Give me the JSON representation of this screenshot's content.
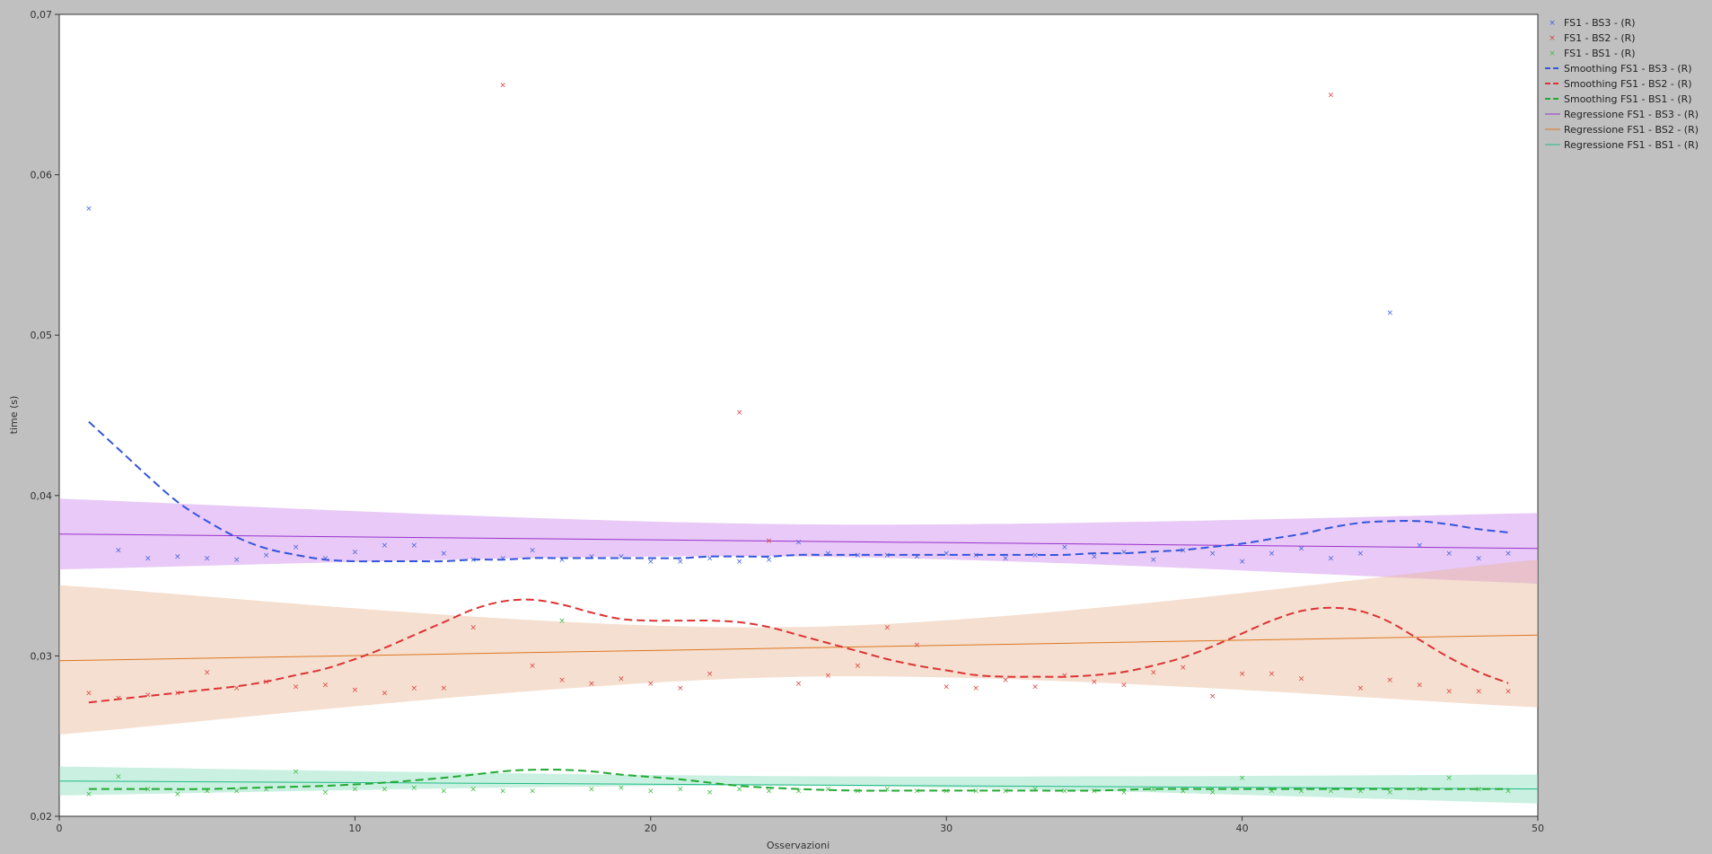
{
  "chart_data": {
    "type": "scatter",
    "xlabel": "Osservazioni",
    "ylabel": "time (s)",
    "xlim": [
      0,
      50
    ],
    "ylim": [
      0.02,
      0.07
    ],
    "x_ticks": [
      0,
      10,
      20,
      30,
      40,
      50
    ],
    "x_tick_labels": [
      "0",
      "10",
      "20",
      "30",
      "40",
      "50"
    ],
    "y_ticks": [
      0.02,
      0.03,
      0.04,
      0.05,
      0.06,
      0.07
    ],
    "y_tick_labels": [
      "0,02",
      "0,03",
      "0,04",
      "0,05",
      "0,06",
      "0,07"
    ],
    "grid": false,
    "legend_position": "top-right outside",
    "x": [
      1,
      2,
      3,
      4,
      5,
      6,
      7,
      8,
      9,
      10,
      11,
      12,
      13,
      14,
      15,
      16,
      17,
      18,
      19,
      20,
      21,
      22,
      23,
      24,
      25,
      26,
      27,
      28,
      29,
      30,
      31,
      32,
      33,
      34,
      35,
      36,
      37,
      38,
      39,
      40,
      41,
      42,
      43,
      44,
      45,
      46,
      47,
      48,
      49
    ],
    "series": [
      {
        "name": "FS1 - BS3 - (R)",
        "kind": "points",
        "color": "#4466dd",
        "values": [
          0.0579,
          0.0366,
          0.0361,
          0.0362,
          0.0361,
          0.036,
          0.0363,
          0.0368,
          0.0361,
          0.0365,
          0.0369,
          0.0369,
          0.0364,
          0.036,
          0.0361,
          0.0366,
          0.036,
          0.0362,
          0.0362,
          0.0359,
          0.0359,
          0.0361,
          0.0359,
          0.036,
          0.0371,
          0.0364,
          0.0363,
          0.0363,
          0.0362,
          0.0364,
          0.0363,
          0.0361,
          0.0363,
          0.0368,
          0.0362,
          0.0365,
          0.036,
          0.0366,
          0.0364,
          0.0359,
          0.0364,
          0.0367,
          0.0361,
          0.0364,
          0.0514,
          0.0369,
          0.0364,
          0.0361,
          0.0364
        ]
      },
      {
        "name": "FS1 - BS2 - (R)",
        "kind": "points",
        "color": "#dd4444",
        "values": [
          0.0277,
          0.0274,
          0.0276,
          0.0277,
          0.029,
          0.028,
          0.0284,
          0.0281,
          0.0282,
          0.0279,
          0.0277,
          0.028,
          0.028,
          0.0318,
          0.0656,
          0.0294,
          0.0285,
          0.0283,
          0.0286,
          0.0283,
          0.028,
          0.0289,
          0.0452,
          0.0372,
          0.0283,
          0.0288,
          0.0294,
          0.0318,
          0.0307,
          0.0281,
          0.028,
          0.0285,
          0.0281,
          0.0288,
          0.0284,
          0.0282,
          0.029,
          0.0293,
          0.0275,
          0.0289,
          0.0289,
          0.0286,
          0.065,
          0.028,
          0.0285,
          0.0282,
          0.0278,
          0.0278,
          0.0278
        ]
      },
      {
        "name": "FS1 - BS1 - (R)",
        "kind": "points",
        "color": "#44bb44",
        "values": [
          0.0214,
          0.0225,
          0.0217,
          0.0214,
          0.0216,
          0.0216,
          0.0217,
          0.0228,
          0.0215,
          0.0217,
          0.0217,
          0.0218,
          0.0216,
          0.0217,
          0.0216,
          0.0216,
          0.0322,
          0.0217,
          0.0218,
          0.0216,
          0.0217,
          0.0215,
          0.0217,
          0.0216,
          0.0216,
          0.0217,
          0.0216,
          0.0217,
          0.0216,
          0.0216,
          0.0216,
          0.0216,
          0.0217,
          0.0216,
          0.0216,
          0.0215,
          0.0217,
          0.0216,
          0.0215,
          0.0224,
          0.0216,
          0.0216,
          0.0216,
          0.0216,
          0.0215,
          0.0217,
          0.0224,
          0.0217,
          0.0216
        ]
      },
      {
        "name": "Smoothing FS1 - BS3 - (R)",
        "kind": "dashed",
        "color": "#3355dd",
        "x": [
          1,
          2,
          3,
          4,
          5,
          6,
          7,
          8,
          9,
          10,
          11,
          12,
          13,
          14,
          15,
          16,
          17,
          18,
          19,
          20,
          21,
          22,
          23,
          24,
          25,
          26,
          27,
          28,
          29,
          30,
          31,
          32,
          33,
          34,
          35,
          36,
          37,
          38,
          39,
          40,
          41,
          42,
          43,
          44,
          45,
          46,
          47,
          48,
          49
        ],
        "values": [
          0.0446,
          0.0429,
          0.0412,
          0.0396,
          0.0384,
          0.0374,
          0.0367,
          0.0363,
          0.036,
          0.0359,
          0.0359,
          0.0359,
          0.0359,
          0.036,
          0.036,
          0.0361,
          0.0361,
          0.0361,
          0.0361,
          0.0361,
          0.0361,
          0.0362,
          0.0362,
          0.0362,
          0.0363,
          0.0363,
          0.0363,
          0.0363,
          0.0363,
          0.0363,
          0.0363,
          0.0363,
          0.0363,
          0.0363,
          0.0364,
          0.0364,
          0.0365,
          0.0366,
          0.0368,
          0.037,
          0.0373,
          0.0376,
          0.038,
          0.0383,
          0.0384,
          0.0384,
          0.0382,
          0.0379,
          0.0377
        ]
      },
      {
        "name": "Smoothing FS1 - BS2 - (R)",
        "kind": "dashed",
        "color": "#dd3333",
        "x": [
          1,
          2,
          3,
          4,
          5,
          6,
          7,
          8,
          9,
          10,
          11,
          12,
          13,
          14,
          15,
          16,
          17,
          18,
          19,
          20,
          21,
          22,
          23,
          24,
          25,
          26,
          27,
          28,
          29,
          30,
          31,
          32,
          33,
          34,
          35,
          36,
          37,
          38,
          39,
          40,
          41,
          42,
          43,
          44,
          45,
          46,
          47,
          48,
          49
        ],
        "values": [
          0.0271,
          0.0273,
          0.0275,
          0.0277,
          0.0279,
          0.0281,
          0.0284,
          0.0288,
          0.0292,
          0.0298,
          0.0305,
          0.0313,
          0.0321,
          0.0329,
          0.0334,
          0.0335,
          0.0332,
          0.0327,
          0.0323,
          0.0322,
          0.0322,
          0.0322,
          0.0321,
          0.0318,
          0.0313,
          0.0308,
          0.0303,
          0.0298,
          0.0294,
          0.0291,
          0.0288,
          0.0287,
          0.0287,
          0.0287,
          0.0288,
          0.029,
          0.0294,
          0.0299,
          0.0306,
          0.0314,
          0.0322,
          0.0328,
          0.033,
          0.0328,
          0.0321,
          0.031,
          0.0299,
          0.029,
          0.0283
        ]
      },
      {
        "name": "Smoothing FS1 - BS1 - (R)",
        "kind": "dashed",
        "color": "#22aa33",
        "x": [
          1,
          3,
          5,
          7,
          9,
          11,
          13,
          15,
          16,
          17,
          18,
          19,
          21,
          23,
          25,
          27,
          29,
          31,
          33,
          35,
          37,
          39,
          41,
          43,
          45,
          47,
          49
        ],
        "values": [
          0.0217,
          0.0217,
          0.0217,
          0.0218,
          0.0219,
          0.0221,
          0.0224,
          0.0228,
          0.0229,
          0.0229,
          0.0228,
          0.0226,
          0.0223,
          0.0219,
          0.0217,
          0.0216,
          0.0216,
          0.0216,
          0.0216,
          0.0216,
          0.0217,
          0.0217,
          0.0217,
          0.0217,
          0.0217,
          0.0217,
          0.0217
        ]
      },
      {
        "name": "Regressione FS1 - BS3 - (R)",
        "kind": "regression",
        "color": "#9933cc",
        "band_color": "#cc88ee",
        "x": [
          0,
          50
        ],
        "values": [
          0.0376,
          0.0367
        ],
        "band_upper": [
          0.0398,
          0.0382,
          0.0389
        ],
        "band_lower": [
          0.0354,
          0.0362,
          0.0345
        ],
        "band_x": [
          0,
          25,
          50
        ]
      },
      {
        "name": "Regressione FS1 - BS2 - (R)",
        "kind": "regression",
        "color": "#dd7722",
        "band_color": "#e8b896",
        "x": [
          0,
          50
        ],
        "values": [
          0.0297,
          0.0313
        ],
        "band_upper": [
          0.0344,
          0.0318,
          0.036
        ],
        "band_lower": [
          0.0251,
          0.0287,
          0.0268
        ],
        "band_x": [
          0,
          25,
          50
        ]
      },
      {
        "name": "Regressione FS1 - BS1 - (R)",
        "kind": "regression",
        "color": "#22bb88",
        "band_color": "#88ddbb",
        "x": [
          0,
          50
        ],
        "values": [
          0.0222,
          0.0217
        ],
        "band_upper": [
          0.0231,
          0.0225,
          0.0226
        ],
        "band_lower": [
          0.0213,
          0.0219,
          0.0208
        ],
        "band_x": [
          0,
          25,
          50
        ]
      }
    ]
  }
}
